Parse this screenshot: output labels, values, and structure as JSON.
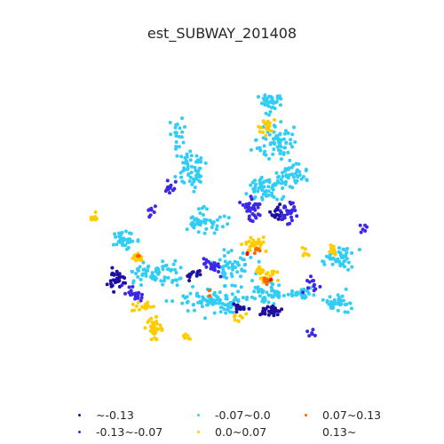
{
  "title": "est_SUBWAY_201408",
  "legend": [
    {
      "label": "~-0.13",
      "color": "#1e0fa0"
    },
    {
      "label": "-0.13~-0.07",
      "color": "#3c28e6"
    },
    {
      "label": "-0.07~0.0",
      "color": "#32cdf5"
    },
    {
      "label": "0.0~0.07",
      "color": "#ffcc00"
    },
    {
      "label": "0.07~0.13",
      "color": "#ff6400"
    },
    {
      "label": "0.13~",
      "color": "#e61414"
    }
  ]
}
